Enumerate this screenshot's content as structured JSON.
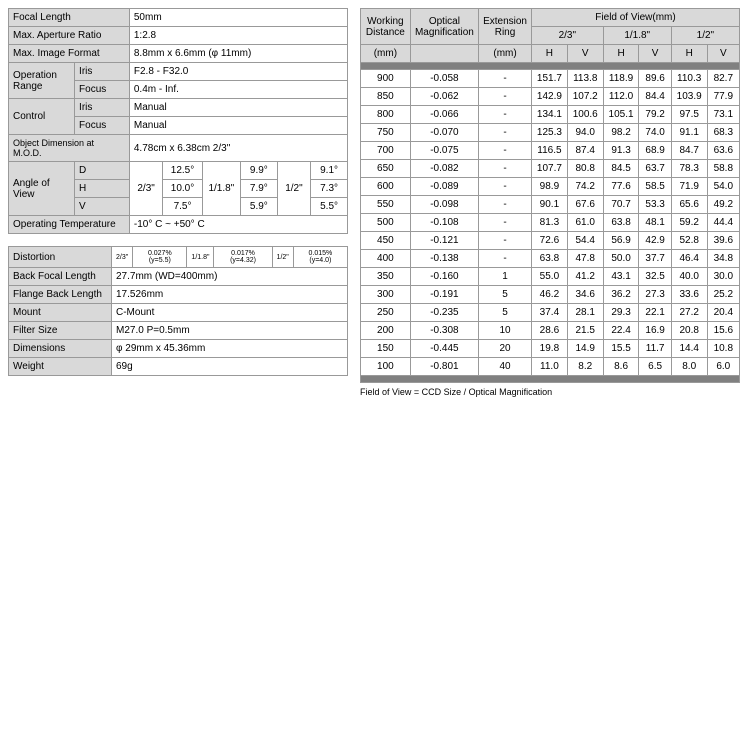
{
  "specs1": {
    "focal_len": {
      "label": "Focal Length",
      "value": "50mm"
    },
    "aperture": {
      "label": "Max. Aperture Ratio",
      "value": "1:2.8"
    },
    "img_format": {
      "label": "Max. Image Format",
      "value": "8.8mm x 6.6mm (φ 11mm)"
    },
    "op_range": {
      "label": "Operation Range",
      "iris": {
        "label": "Iris",
        "value": "F2.8 - F32.0"
      },
      "focus": {
        "label": "Focus",
        "value": "0.4m - Inf."
      }
    },
    "control": {
      "label": "Control",
      "iris": {
        "label": "Iris",
        "value": "Manual"
      },
      "focus": {
        "label": "Focus",
        "value": "Manual"
      }
    },
    "obj_dim": {
      "label": "Object Dimension at M.O.D.",
      "value": "4.78cm x 6.38cm 2/3\""
    },
    "aov": {
      "label": "Angle of View",
      "d": {
        "label": "D"
      },
      "h": {
        "label": "H"
      },
      "v": {
        "label": "V"
      },
      "c1": "2/3\"",
      "c2": "1/1.8\"",
      "c3": "1/2\"",
      "d1": "12.5°",
      "d2": "9.9°",
      "d3": "9.1°",
      "h1": "10.0°",
      "h2": "7.9°",
      "h3": "7.3°",
      "v1": "7.5°",
      "v2": "5.9°",
      "v3": "5.5°"
    },
    "temp": {
      "label": "Operating Temperature",
      "value": "-10° C ~ +50° C"
    }
  },
  "specs2": {
    "distortion": {
      "label": "Distortion",
      "c1": "2/3\"",
      "v1": "0.027%(y=5.5)",
      "c2": "1/1.8\"",
      "v2": "0.017%(y=4.32)",
      "c3": "1/2\"",
      "v3": "0.015%(y=4.0)"
    },
    "bfl": {
      "label": "Back Focal Length",
      "value": "27.7mm (WD=400mm)"
    },
    "fbl": {
      "label": "Flange Back Length",
      "value": "17.526mm"
    },
    "mount": {
      "label": "Mount",
      "value": "C-Mount"
    },
    "filter": {
      "label": "Filter Size",
      "value": "M27.0 P=0.5mm"
    },
    "dims": {
      "label": "Dimensions",
      "value": "φ 29mm x 45.36mm"
    },
    "weight": {
      "label": "Weight",
      "value": "69g"
    }
  },
  "fov": {
    "headers": {
      "wd": "Working Distance",
      "mag": "Optical Magnification",
      "ext": "Extension Ring",
      "fov": "Field of View(mm)",
      "s1": "2/3\"",
      "s2": "1/1.8\"",
      "s3": "1/2\"",
      "mm": "(mm)",
      "h": "H",
      "v": "V"
    },
    "rows": [
      [
        "900",
        "-0.058",
        "-",
        "151.7",
        "113.8",
        "118.9",
        "89.6",
        "110.3",
        "82.7"
      ],
      [
        "850",
        "-0.062",
        "-",
        "142.9",
        "107.2",
        "112.0",
        "84.4",
        "103.9",
        "77.9"
      ],
      [
        "800",
        "-0.066",
        "-",
        "134.1",
        "100.6",
        "105.1",
        "79.2",
        "97.5",
        "73.1"
      ],
      [
        "750",
        "-0.070",
        "-",
        "125.3",
        "94.0",
        "98.2",
        "74.0",
        "91.1",
        "68.3"
      ],
      [
        "700",
        "-0.075",
        "-",
        "116.5",
        "87.4",
        "91.3",
        "68.9",
        "84.7",
        "63.6"
      ],
      [
        "650",
        "-0.082",
        "-",
        "107.7",
        "80.8",
        "84.5",
        "63.7",
        "78.3",
        "58.8"
      ],
      [
        "600",
        "-0.089",
        "-",
        "98.9",
        "74.2",
        "77.6",
        "58.5",
        "71.9",
        "54.0"
      ],
      [
        "550",
        "-0.098",
        "-",
        "90.1",
        "67.6",
        "70.7",
        "53.3",
        "65.6",
        "49.2"
      ],
      [
        "500",
        "-0.108",
        "-",
        "81.3",
        "61.0",
        "63.8",
        "48.1",
        "59.2",
        "44.4"
      ],
      [
        "450",
        "-0.121",
        "-",
        "72.6",
        "54.4",
        "56.9",
        "42.9",
        "52.8",
        "39.6"
      ],
      [
        "400",
        "-0.138",
        "-",
        "63.8",
        "47.8",
        "50.0",
        "37.7",
        "46.4",
        "34.8"
      ],
      [
        "350",
        "-0.160",
        "1",
        "55.0",
        "41.2",
        "43.1",
        "32.5",
        "40.0",
        "30.0"
      ],
      [
        "300",
        "-0.191",
        "5",
        "46.2",
        "34.6",
        "36.2",
        "27.3",
        "33.6",
        "25.2"
      ],
      [
        "250",
        "-0.235",
        "5",
        "37.4",
        "28.1",
        "29.3",
        "22.1",
        "27.2",
        "20.4"
      ],
      [
        "200",
        "-0.308",
        "10",
        "28.6",
        "21.5",
        "22.4",
        "16.9",
        "20.8",
        "15.6"
      ],
      [
        "150",
        "-0.445",
        "20",
        "19.8",
        "14.9",
        "15.5",
        "11.7",
        "14.4",
        "10.8"
      ],
      [
        "100",
        "-0.801",
        "40",
        "11.0",
        "8.2",
        "8.6",
        "6.5",
        "8.0",
        "6.0"
      ]
    ],
    "footnote": "Field of View = CCD Size / Optical Magnification"
  },
  "colors": {
    "header_bg": "#d9d9d9",
    "sep_bg": "#808080",
    "border": "#999999",
    "text": "#000000",
    "bg": "#ffffff"
  }
}
